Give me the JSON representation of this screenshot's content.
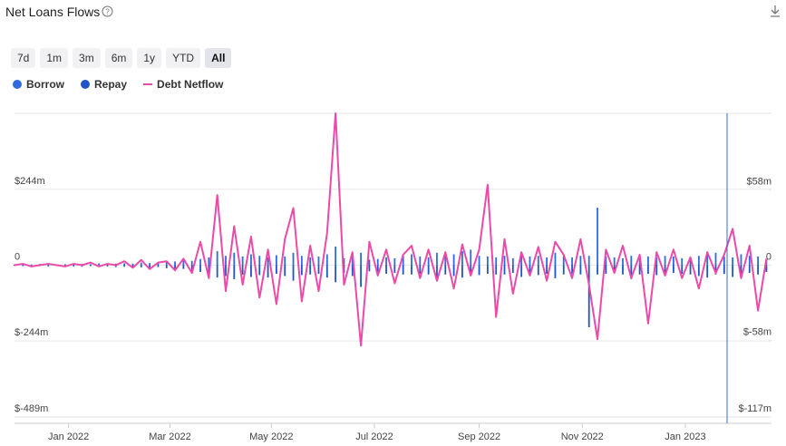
{
  "chart_data": {
    "type": "bar",
    "title": "Net Loans Flows",
    "range_options": [
      "7d",
      "1m",
      "3m",
      "6m",
      "1y",
      "YTD",
      "All"
    ],
    "selected_range": "All",
    "x": [
      0,
      5,
      10,
      15,
      20,
      25,
      30,
      35,
      40,
      45,
      50,
      55,
      60,
      65,
      70,
      75,
      80,
      85,
      90,
      95,
      100,
      105,
      110,
      115,
      120,
      125,
      130,
      135,
      140,
      145,
      150,
      155,
      160,
      165,
      170,
      175,
      180,
      185,
      190,
      195,
      200,
      205,
      210,
      215,
      220,
      225,
      230,
      235,
      240,
      245,
      250,
      255,
      260,
      265,
      270,
      275,
      280,
      285,
      290,
      295,
      300,
      305,
      310,
      315,
      320,
      325,
      330,
      335,
      340,
      345,
      350,
      355,
      360,
      365,
      370,
      375,
      380,
      385,
      390,
      395,
      400,
      405,
      410,
      415,
      420,
      425,
      430,
      435,
      440,
      445
    ],
    "xlim": [
      0,
      448
    ],
    "xticks": [
      {
        "value": 32,
        "label": "Jan 2022"
      },
      {
        "value": 92,
        "label": "Mar 2022"
      },
      {
        "value": 152,
        "label": "May 2022"
      },
      {
        "value": 213,
        "label": "Jul 2022"
      },
      {
        "value": 275,
        "label": "Sep 2022"
      },
      {
        "value": 336,
        "label": "Nov 2022"
      },
      {
        "value": 397,
        "label": "Jan 2023"
      }
    ],
    "ylim": [
      -489,
      489
    ],
    "yticks": [
      {
        "value": -489,
        "label": "$-489m"
      },
      {
        "value": -244,
        "label": "$-244m"
      },
      0,
      {
        "value": 244,
        "label": "$244m"
      }
    ],
    "y2lim": [
      -117,
      117
    ],
    "y2ticks": [
      {
        "value": -117,
        "label": "$-117m"
      },
      {
        "value": -58,
        "label": "$-58m"
      },
      0,
      {
        "value": 58,
        "label": "$58m"
      }
    ],
    "grid": true,
    "series": [
      {
        "name": "Borrow",
        "color": "#2f6be0",
        "values": [
          2,
          3,
          2,
          4,
          3,
          2,
          3,
          5,
          4,
          3,
          6,
          4,
          5,
          6,
          5,
          8,
          7,
          6,
          10,
          12,
          15,
          14,
          20,
          25,
          45,
          30,
          40,
          28,
          35,
          30,
          25,
          32,
          28,
          40,
          30,
          25,
          28,
          35,
          60,
          22,
          30,
          40,
          18,
          20,
          25,
          22,
          30,
          35,
          28,
          25,
          40,
          30,
          35,
          45,
          50,
          30,
          28,
          25,
          30,
          22,
          35,
          28,
          30,
          25,
          40,
          30,
          25,
          30,
          30,
          185,
          28,
          25,
          22,
          30,
          35,
          28,
          25,
          30,
          28,
          22,
          25,
          30,
          32,
          40,
          28,
          25,
          35,
          30,
          28,
          20
        ]
      },
      {
        "name": "Repay",
        "color": "#1f55c6",
        "values": [
          -2,
          -3,
          -2,
          -3,
          -4,
          -2,
          -3,
          -4,
          -5,
          -3,
          -5,
          -4,
          -6,
          -5,
          -6,
          -7,
          -8,
          -6,
          -10,
          -14,
          -12,
          -18,
          -22,
          -30,
          -40,
          -35,
          -45,
          -30,
          -38,
          -32,
          -40,
          -28,
          -35,
          -50,
          -32,
          -30,
          -28,
          -40,
          -55,
          -25,
          -35,
          -70,
          -20,
          -22,
          -28,
          -25,
          -30,
          -30,
          -28,
          -30,
          -45,
          -30,
          -35,
          -40,
          -35,
          -32,
          -28,
          -30,
          -30,
          -25,
          -38,
          -30,
          -32,
          -28,
          -42,
          -30,
          -28,
          -30,
          -200,
          -30,
          -28,
          -25,
          -30,
          -45,
          -30,
          -28,
          -32,
          -28,
          -25,
          -28,
          -30,
          -35,
          -40,
          -30,
          -28,
          -38,
          -30,
          -25,
          -30,
          -22
        ]
      },
      {
        "name": "Debt Netflow",
        "color": "#ec4aa8",
        "type": "line",
        "axis": "y2",
        "values": [
          0,
          1,
          -1,
          0,
          1,
          0,
          -1,
          1,
          0,
          2,
          -1,
          1,
          0,
          3,
          -2,
          4,
          -3,
          2,
          3,
          -4,
          5,
          -6,
          18,
          -10,
          54,
          -20,
          30,
          -15,
          22,
          -25,
          12,
          -30,
          20,
          44,
          -28,
          15,
          -20,
          25,
          117,
          -15,
          10,
          -62,
          18,
          -8,
          12,
          -14,
          8,
          15,
          -10,
          12,
          -12,
          10,
          -18,
          16,
          -8,
          12,
          62,
          -40,
          20,
          -22,
          10,
          -8,
          14,
          -12,
          18,
          8,
          -10,
          20,
          -15,
          -57,
          12,
          -6,
          15,
          -10,
          8,
          -45,
          10,
          -8,
          12,
          -10,
          6,
          -18,
          10,
          -6,
          8,
          28,
          -10,
          15,
          -35,
          5
        ]
      }
    ]
  }
}
